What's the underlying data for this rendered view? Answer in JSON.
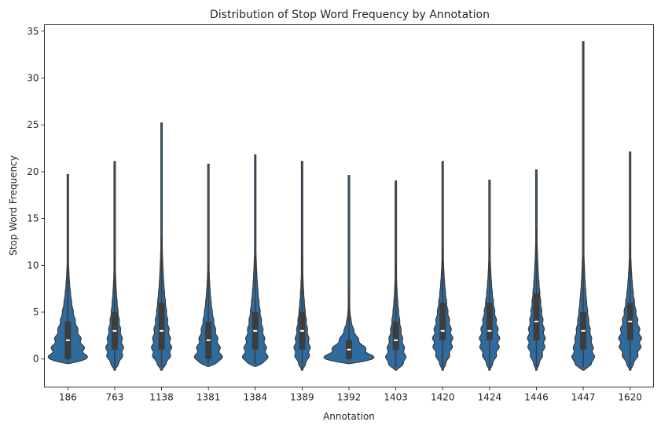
{
  "chart_data": {
    "type": "violin",
    "title": "Distribution of Stop Word Frequency by Annotation",
    "xlabel": "Annotation",
    "ylabel": "Stop Word Frequency",
    "ylim": [
      -3,
      35.7
    ],
    "yticks": [
      "0",
      "5",
      "10",
      "15",
      "20",
      "25",
      "30",
      "35"
    ],
    "categories": [
      "186",
      "763",
      "1138",
      "1381",
      "1384",
      "1389",
      "1392",
      "1403",
      "1420",
      "1424",
      "1446",
      "1447",
      "1620"
    ],
    "series": [
      {
        "category": "186",
        "min": -0.5,
        "max": 19.7,
        "q1": 0,
        "median": 2,
        "q3": 4,
        "whisker_high": 10,
        "mode": 0,
        "mode_halfwidth_frac": 0.77
      },
      {
        "category": "763",
        "min": -1.2,
        "max": 21.1,
        "q1": 1,
        "median": 3,
        "q3": 5,
        "whisker_high": 11,
        "mode": 1,
        "mode_halfwidth_frac": 0.35
      },
      {
        "category": "1138",
        "min": -1.2,
        "max": 25.2,
        "q1": 1,
        "median": 3,
        "q3": 6,
        "whisker_high": 13,
        "mode": 1,
        "mode_halfwidth_frac": 0.4
      },
      {
        "category": "1381",
        "min": -0.8,
        "max": 20.8,
        "q1": 0,
        "median": 2,
        "q3": 4,
        "whisker_high": 10,
        "mode": 0,
        "mode_halfwidth_frac": 0.55
      },
      {
        "category": "1384",
        "min": -0.8,
        "max": 21.8,
        "q1": 1,
        "median": 3,
        "q3": 5,
        "whisker_high": 11,
        "mode": 0,
        "mode_halfwidth_frac": 0.5
      },
      {
        "category": "1389",
        "min": -1.2,
        "max": 21.1,
        "q1": 1,
        "median": 3,
        "q3": 5,
        "whisker_high": 11,
        "mode": 1,
        "mode_halfwidth_frac": 0.32
      },
      {
        "category": "1392",
        "min": -0.5,
        "max": 19.6,
        "q1": 0,
        "median": 1,
        "q3": 2,
        "whisker_high": 7,
        "mode": 0,
        "mode_halfwidth_frac": 1.0
      },
      {
        "category": "1403",
        "min": -1.2,
        "max": 19.0,
        "q1": 1,
        "median": 2,
        "q3": 4,
        "whisker_high": 10,
        "mode": 0,
        "mode_halfwidth_frac": 0.4
      },
      {
        "category": "1420",
        "min": -1.2,
        "max": 21.1,
        "q1": 2,
        "median": 3,
        "q3": 6,
        "whisker_high": 12,
        "mode": 2,
        "mode_halfwidth_frac": 0.4
      },
      {
        "category": "1424",
        "min": -1.2,
        "max": 19.1,
        "q1": 2,
        "median": 3,
        "q3": 6,
        "whisker_high": 12,
        "mode": 2,
        "mode_halfwidth_frac": 0.4
      },
      {
        "category": "1446",
        "min": -1.2,
        "max": 20.2,
        "q1": 2,
        "median": 4,
        "q3": 7,
        "whisker_high": 14,
        "mode": 2,
        "mode_halfwidth_frac": 0.35
      },
      {
        "category": "1447",
        "min": -1.2,
        "max": 33.9,
        "q1": 1,
        "median": 3,
        "q3": 5,
        "whisker_high": 11,
        "mode": 0,
        "mode_halfwidth_frac": 0.45
      },
      {
        "category": "1620",
        "min": -1.2,
        "max": 22.1,
        "q1": 2,
        "median": 4,
        "q3": 6,
        "whisker_high": 12,
        "mode": 2,
        "mode_halfwidth_frac": 0.45
      }
    ],
    "colors": {
      "fill": "#2e6b9e",
      "edge": "#3b3b3b",
      "box": "#3d3d3d",
      "median": "#ffffff"
    },
    "grid": false,
    "legend": "none"
  }
}
